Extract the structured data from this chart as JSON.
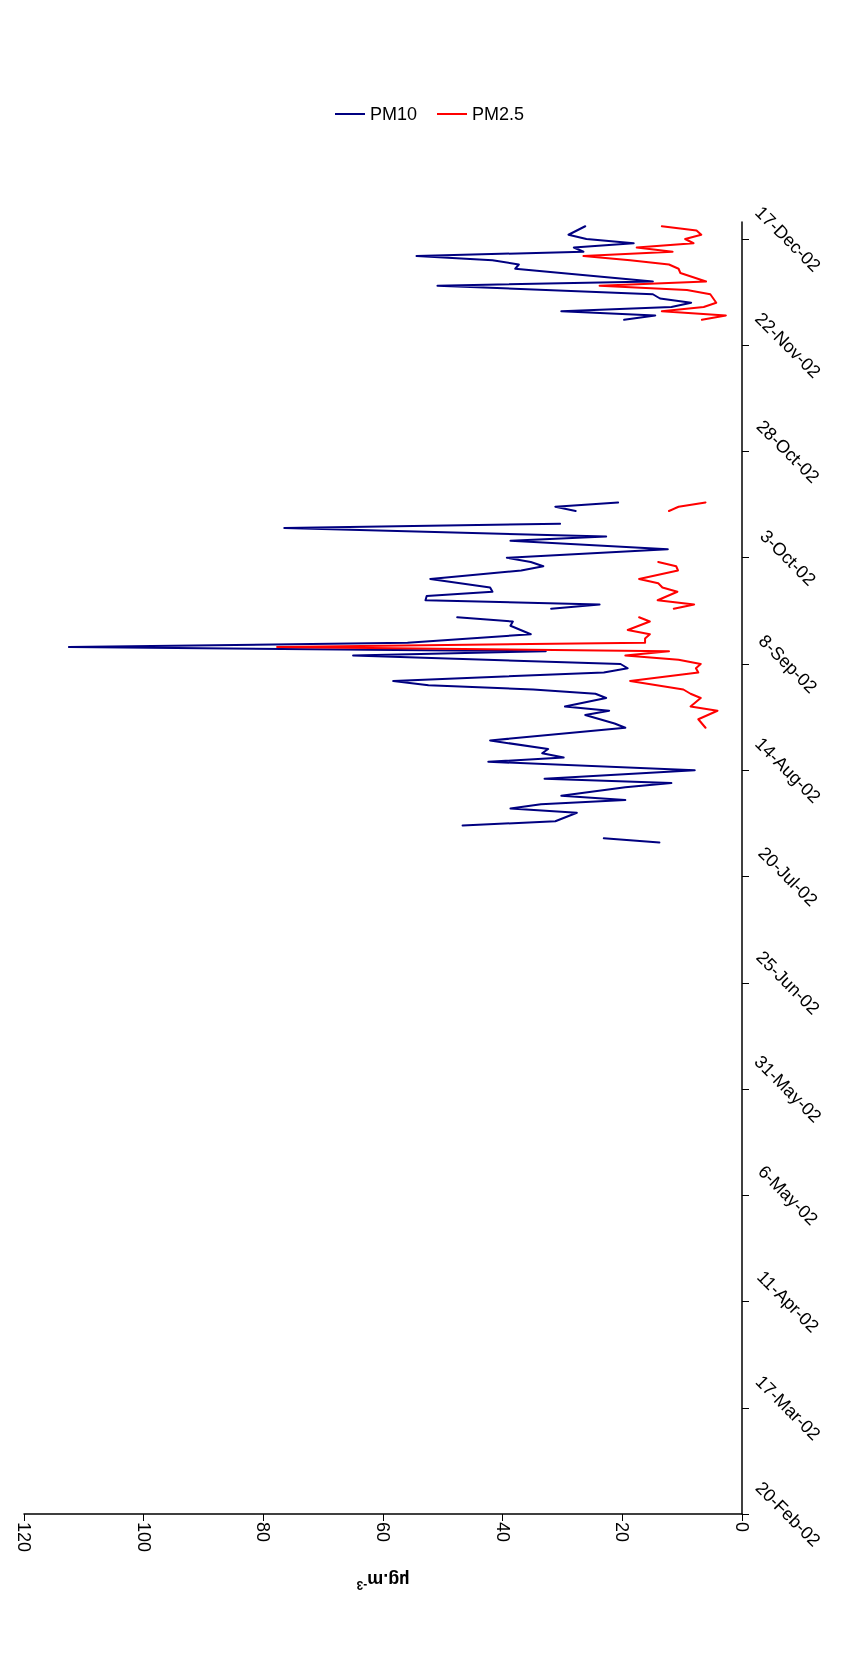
{
  "chart_data": {
    "type": "line",
    "orientation": "horizontal",
    "xlabel": "µg.m$^{-3}$",
    "ylim": [
      "2002-02-20",
      "2002-12-21"
    ],
    "yticks": [
      {
        "value": "2002-02-20",
        "label": "20-Feb-02"
      },
      {
        "value": "2002-03-17",
        "label": "17-Mar-02"
      },
      {
        "value": "2002-04-11",
        "label": "11-Apr-02"
      },
      {
        "value": "2002-05-06",
        "label": "6-May-02"
      },
      {
        "value": "2002-05-31",
        "label": "31-May-02"
      },
      {
        "value": "2002-06-25",
        "label": "25-Jun-02"
      },
      {
        "value": "2002-07-20",
        "label": "20-Jul-02"
      },
      {
        "value": "2002-08-14",
        "label": "14-Aug-02"
      },
      {
        "value": "2002-09-08",
        "label": "8-Sep-02"
      },
      {
        "value": "2002-10-03",
        "label": "3-Oct-02"
      },
      {
        "value": "2002-10-28",
        "label": "28-Oct-02"
      },
      {
        "value": "2002-11-22",
        "label": "22-Nov-02"
      },
      {
        "value": "2002-12-17",
        "label": "17-Dec-02"
      }
    ],
    "xlim": [
      120,
      0
    ],
    "xticks": [
      0,
      20,
      40,
      60,
      80,
      100,
      120
    ],
    "grid": false,
    "legend": "top",
    "marker": "none",
    "line_style": "solid",
    "series": [
      {
        "name": "PM10",
        "color": "#000080",
        "x": [
          "2002-07-28",
          "2002-07-29",
          "2002-07-30",
          "2002-08-01",
          "2002-08-02",
          "2002-08-04",
          "2002-08-05",
          "2002-08-06",
          "2002-08-07",
          "2002-08-08",
          "2002-08-10",
          "2002-08-11",
          "2002-08-12",
          "2002-08-14",
          "2002-08-16",
          "2002-08-17",
          "2002-08-18",
          "2002-08-19",
          "2002-08-21",
          "2002-08-24",
          "2002-08-25",
          "2002-08-27",
          "2002-08-28",
          "2002-08-29",
          "2002-08-31",
          "2002-09-01",
          "2002-09-02",
          "2002-09-03",
          "2002-09-04",
          "2002-09-06",
          "2002-09-07",
          "2002-09-08",
          "2002-09-10",
          "2002-09-11",
          "2002-09-12",
          "2002-09-13",
          "2002-09-15",
          "2002-09-17",
          "2002-09-18",
          "2002-09-19",
          "2002-09-20",
          "2002-09-21",
          "2002-09-22",
          "2002-09-23",
          "2002-09-24",
          "2002-09-25",
          "2002-09-26",
          "2002-09-28",
          "2002-09-30",
          "2002-10-01",
          "2002-10-02",
          "2002-10-03",
          "2002-10-05",
          "2002-10-07",
          "2002-10-08",
          "2002-10-10",
          "2002-10-11",
          "2002-10-12",
          "2002-10-14",
          "2002-10-15",
          "2002-10-16",
          "2002-10-17",
          "2002-11-28",
          "2002-11-29",
          "2002-11-30",
          "2002-12-01",
          "2002-12-02",
          "2002-12-03",
          "2002-12-04",
          "2002-12-06",
          "2002-12-07",
          "2002-12-10",
          "2002-12-11",
          "2002-12-12",
          "2002-12-13",
          "2002-12-14",
          "2002-12-15",
          "2002-12-16",
          "2002-12-17",
          "2002-12-18",
          "2002-12-20"
        ],
        "values": [
          13.8,
          23.1,
          null,
          46.7,
          31.2,
          27.6,
          38.7,
          33.6,
          19.5,
          30.2,
          19.5,
          11.8,
          33.0,
          7.9,
          42.4,
          29.8,
          33.4,
          32.4,
          42.1,
          19.5,
          21.3,
          26.2,
          22.2,
          29.6,
          22.7,
          24.5,
          34.9,
          52.4,
          58.3,
          23.1,
          19.1,
          20.3,
          65.0,
          32.8,
          112.5,
          55.9,
          35.3,
          38.7,
          38.3,
          47.6,
          null,
          31.9,
          23.8,
          52.9,
          52.7,
          41.7,
          42.1,
          52.1,
          36.9,
          33.2,
          35.3,
          39.3,
          12.4,
          38.7,
          22.7,
          76.5,
          30.4,
          null,
          27.8,
          31.2,
          20.7,
          null,
          19.7,
          14.5,
          30.2,
          11.8,
          8.5,
          13.7,
          14.9,
          50.9,
          14.9,
          37.9,
          37.3,
          41.7,
          54.4,
          26.5,
          28.1,
          18.1,
          26.0,
          29.0,
          26.2
        ]
      },
      {
        "name": "PM2.5",
        "color": "#ff0000",
        "x": [
          "2002-08-24",
          "2002-08-26",
          "2002-08-28",
          "2002-08-29",
          "2002-08-31",
          "2002-09-01",
          "2002-09-02",
          "2002-09-04",
          "2002-09-06",
          "2002-09-07",
          "2002-09-08",
          "2002-09-09",
          "2002-09-10",
          "2002-09-11",
          "2002-09-12",
          "2002-09-13",
          "2002-09-14",
          "2002-09-15",
          "2002-09-16",
          "2002-09-18",
          "2002-09-19",
          "2002-09-20",
          "2002-09-21",
          "2002-09-22",
          "2002-09-23",
          "2002-09-25",
          "2002-09-26",
          "2002-09-27",
          "2002-09-28",
          "2002-09-30",
          "2002-10-01",
          "2002-10-02",
          "2002-10-03",
          "2002-10-14",
          "2002-10-15",
          "2002-10-16",
          "2002-10-17",
          "2002-11-28",
          "2002-11-29",
          "2002-11-30",
          "2002-12-01",
          "2002-12-02",
          "2002-12-04",
          "2002-12-05",
          "2002-12-06",
          "2002-12-07",
          "2002-12-09",
          "2002-12-10",
          "2002-12-11",
          "2002-12-12",
          "2002-12-13",
          "2002-12-14",
          "2002-12-15",
          "2002-12-16",
          "2002-12-17",
          "2002-12-18",
          "2002-12-19",
          "2002-12-20"
        ],
        "values": [
          6.1,
          7.3,
          4.1,
          8.6,
          6.9,
          8.6,
          9.8,
          18.7,
          7.3,
          7.7,
          6.9,
          10.6,
          19.5,
          12.2,
          77.7,
          16.2,
          16.2,
          15.4,
          19.1,
          15.4,
          17.2,
          null,
          11.4,
          8.0,
          14.1,
          10.8,
          13.3,
          14.0,
          17.2,
          10.7,
          11.0,
          14.0,
          null,
          12.2,
          10.6,
          6.1,
          null,
          6.7,
          2.7,
          13.4,
          6.4,
          4.3,
          5.3,
          9.2,
          23.8,
          6.0,
          10.3,
          10.6,
          12.2,
          18.7,
          26.5,
          11.6,
          17.6,
          8.1,
          9.5,
          6.8,
          7.6,
          13.4
        ]
      }
    ]
  }
}
